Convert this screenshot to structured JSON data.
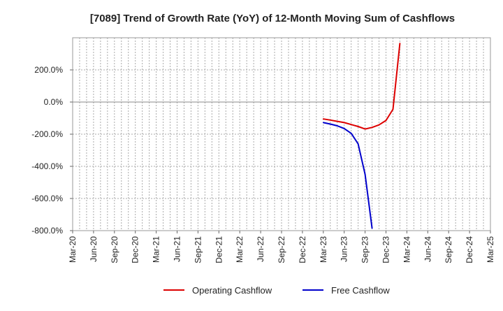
{
  "chart_data": {
    "type": "line",
    "title": "[7089]  Trend of Growth Rate (YoY) of 12-Month Moving Sum of Cashflows",
    "xlabel": "",
    "ylabel": "",
    "x_range": [
      "2020-03",
      "2025-03"
    ],
    "ylim": [
      -800,
      400
    ],
    "y_ticks": [
      200,
      0,
      -200,
      -400,
      -600,
      -800
    ],
    "y_tick_labels": [
      "200.0%",
      "0.0%",
      "-200.0%",
      "-400.0%",
      "-600.0%",
      "-800.0%"
    ],
    "x_ticks": [
      "2020-03",
      "2020-06",
      "2020-09",
      "2020-12",
      "2021-03",
      "2021-06",
      "2021-09",
      "2021-12",
      "2022-03",
      "2022-06",
      "2022-09",
      "2022-12",
      "2023-03",
      "2023-06",
      "2023-09",
      "2023-12",
      "2024-03",
      "2024-06",
      "2024-09",
      "2024-12",
      "2025-03"
    ],
    "x_tick_labels": [
      "Mar-20",
      "Jun-20",
      "Sep-20",
      "Dec-20",
      "Mar-21",
      "Jun-21",
      "Sep-21",
      "Dec-21",
      "Mar-22",
      "Jun-22",
      "Sep-22",
      "Dec-22",
      "Mar-23",
      "Jun-23",
      "Sep-23",
      "Dec-23",
      "Mar-24",
      "Jun-24",
      "Sep-24",
      "Dec-24",
      "Mar-25"
    ],
    "grid": true,
    "legend_position": "bottom-center",
    "series": [
      {
        "name": "Operating Cashflow",
        "color": "#dd0000",
        "x": [
          "2023-03",
          "2023-04",
          "2023-05",
          "2023-06",
          "2023-07",
          "2023-08",
          "2023-09",
          "2023-10",
          "2023-11",
          "2023-12",
          "2024-01",
          "2024-02"
        ],
        "values": [
          -105,
          -112,
          -120,
          -128,
          -140,
          -152,
          -168,
          -158,
          -142,
          -115,
          -45,
          365
        ]
      },
      {
        "name": "Free Cashflow",
        "color": "#0000cc",
        "x": [
          "2023-03",
          "2023-04",
          "2023-05",
          "2023-06",
          "2023-07",
          "2023-08",
          "2023-09",
          "2023-10"
        ],
        "values": [
          -128,
          -137,
          -148,
          -165,
          -195,
          -260,
          -450,
          -785
        ]
      }
    ]
  }
}
